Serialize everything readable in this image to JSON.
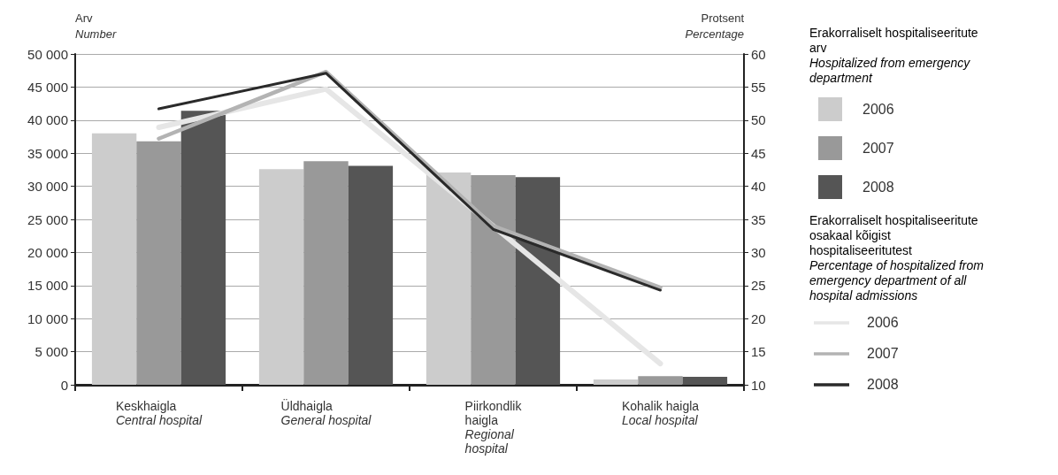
{
  "chart_data": {
    "type": "bar",
    "ylabel": "Arv\nNumber",
    "y2label": "Protsent\nPercentage",
    "legend_title": "Erakorraliselt hospitaliseeritute arv\nHospitalized from emergency department",
    "annotations": [
      "Erakorraliselt hospitaliseeritute osakaal kõigist hospitaliseeritutest\nPercentage of hospitalized from emergency department of all hospital admissions"
    ],
    "categories": [
      "Keskhaigla\nCentral hospital",
      "Üldhaigla\nGeneral hospital",
      "Piirkondlik haigla\nRegional hospital",
      "Kohalik haigla\nLocal hospital"
    ],
    "series": [
      {
        "name": "2006",
        "color": "#cccccc",
        "values": [
          38000,
          32600,
          32100,
          800
        ]
      },
      {
        "name": "2007",
        "color": "#999999",
        "values": [
          36800,
          33800,
          31700,
          1300
        ]
      },
      {
        "name": "2008",
        "color": "#555555",
        "values": [
          41400,
          33100,
          31400,
          1200
        ]
      },
      {
        "name": "2006",
        "type": "line",
        "axis": "y2",
        "color": "#e6e6e6",
        "values": [
          48.9,
          54.7,
          34,
          13.2
        ]
      },
      {
        "name": "2007",
        "type": "line",
        "axis": "y2",
        "color": "#b3b3b3",
        "values": [
          47.2,
          57.3,
          34,
          24.7
        ]
      },
      {
        "name": "2008",
        "type": "line",
        "axis": "y2",
        "color": "#2a2a2a",
        "values": [
          51.7,
          57.1,
          33.5,
          24.3
        ]
      }
    ],
    "ylim": [
      0,
      50000
    ],
    "yticks": [
      {
        "value": 0,
        "label": "0"
      },
      {
        "value": 5000,
        "label": "5 000"
      },
      {
        "value": 10000,
        "label": "10 000"
      },
      {
        "value": 15000,
        "label": "15 000"
      },
      {
        "value": 20000,
        "label": "20 000"
      },
      {
        "value": 25000,
        "label": "25 000"
      },
      {
        "value": 30000,
        "label": "30 000"
      },
      {
        "value": 35000,
        "label": "35 000"
      },
      {
        "value": 40000,
        "label": "40 000"
      },
      {
        "value": 45000,
        "label": "45 000"
      },
      {
        "value": 50000,
        "label": "50 000"
      }
    ],
    "y2lim": [
      10,
      60
    ],
    "y2ticks": [
      10,
      15,
      20,
      25,
      30,
      35,
      40,
      45,
      50,
      55,
      60
    ],
    "grid": "y",
    "legend": "right",
    "marker": "none"
  }
}
